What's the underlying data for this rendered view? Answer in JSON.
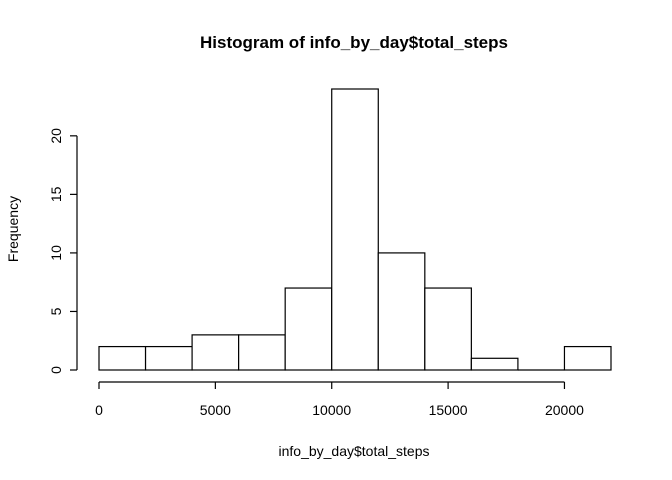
{
  "chart_data": {
    "type": "bar",
    "title": "Histogram of info_by_day$total_steps",
    "xlabel": "info_by_day$total_steps",
    "ylabel": "Frequency",
    "bin_edges": [
      0,
      2000,
      4000,
      6000,
      8000,
      10000,
      12000,
      14000,
      16000,
      18000,
      20000,
      22000
    ],
    "values": [
      2,
      2,
      3,
      3,
      7,
      24,
      10,
      7,
      1,
      0,
      2
    ],
    "xlim": [
      0,
      22000
    ],
    "ylim": [
      0,
      24
    ],
    "x_ticks": [
      0,
      5000,
      10000,
      15000,
      20000
    ],
    "x_tick_labels": [
      "0",
      "5000",
      "10000",
      "15000",
      "20000"
    ],
    "y_ticks": [
      0,
      5,
      10,
      15,
      20
    ],
    "y_tick_labels": [
      "0",
      "5",
      "10",
      "15",
      "20"
    ],
    "grid": false,
    "bar_fill": "#ffffff",
    "bar_stroke": "#000000"
  }
}
